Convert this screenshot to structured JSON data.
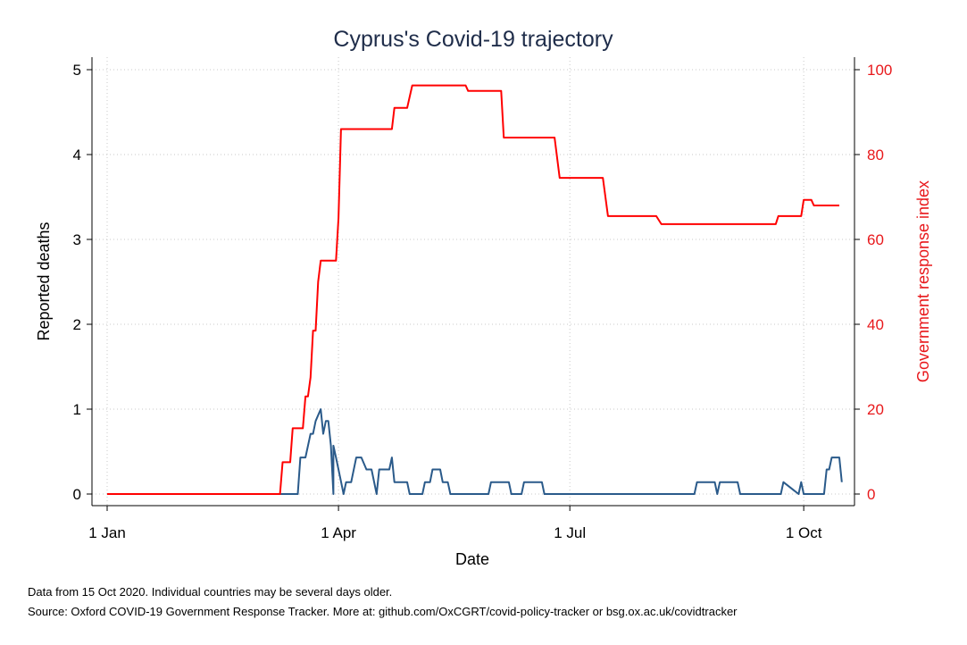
{
  "chart_data": {
    "type": "line",
    "title": "Cyprus's Covid-19 trajectory",
    "xlabel": "Date",
    "ylabel_left": "Reported deaths",
    "ylabel_right": "Government response index",
    "x_tick_labels": [
      "1 Jan",
      "1 Apr",
      "1 Jul",
      "1 Oct"
    ],
    "x_tick_dates": [
      "2020-01-01",
      "2020-04-01",
      "2020-07-01",
      "2020-10-01"
    ],
    "xlim": [
      "2020-01-01",
      "2020-10-15"
    ],
    "left_axis": {
      "ylim": [
        0,
        5
      ],
      "ticks": [
        "0",
        "1",
        "2",
        "3",
        "4",
        "5"
      ]
    },
    "right_axis": {
      "ylim": [
        0,
        100
      ],
      "ticks": [
        "0",
        "20",
        "40",
        "60",
        "80",
        "100"
      ]
    },
    "grid": true,
    "colors": {
      "deaths": "#2a5a8a",
      "response": "#ff0000",
      "right_axis_text": "#e8181b",
      "title": "#1f2d4a"
    },
    "series": [
      {
        "axis": "left",
        "color": "#2a5a8a",
        "points": [
          [
            "2020-01-01",
            0
          ],
          [
            "2020-03-30",
            0
          ],
          [
            "2020-03-09",
            0
          ],
          [
            "2020-03-16",
            0
          ],
          [
            "2020-03-17",
            0.43
          ],
          [
            "2020-03-19",
            0.43
          ],
          [
            "2020-03-21",
            0.71
          ],
          [
            "2020-03-22",
            0.71
          ],
          [
            "2020-03-23",
            0.86
          ],
          [
            "2020-03-25",
            1.0
          ],
          [
            "2020-03-26",
            0.71
          ],
          [
            "2020-03-27",
            0.86
          ],
          [
            "2020-03-28",
            0.86
          ],
          [
            "2020-03-29",
            0.57
          ],
          [
            "2020-03-30",
            0.57
          ],
          [
            "2020-03-31",
            0.43
          ],
          [
            "2020-04-01",
            0.29
          ],
          [
            "2020-04-03",
            0.0
          ],
          [
            "2020-04-04",
            0.14
          ],
          [
            "2020-04-06",
            0.14
          ],
          [
            "2020-04-08",
            0.43
          ],
          [
            "2020-04-10",
            0.43
          ],
          [
            "2020-04-12",
            0.29
          ],
          [
            "2020-04-14",
            0.29
          ],
          [
            "2020-04-16",
            0.0
          ],
          [
            "2020-04-17",
            0.29
          ],
          [
            "2020-04-21",
            0.29
          ],
          [
            "2020-04-22",
            0.43
          ],
          [
            "2020-04-23",
            0.14
          ],
          [
            "2020-04-28",
            0.14
          ],
          [
            "2020-04-29",
            0.0
          ],
          [
            "2020-05-04",
            0.0
          ],
          [
            "2020-05-05",
            0.14
          ],
          [
            "2020-05-07",
            0.14
          ],
          [
            "2020-05-08",
            0.29
          ],
          [
            "2020-05-11",
            0.29
          ],
          [
            "2020-05-12",
            0.14
          ],
          [
            "2020-05-14",
            0.14
          ],
          [
            "2020-05-15",
            0.0
          ],
          [
            "2020-05-30",
            0.0
          ],
          [
            "2020-05-31",
            0.14
          ],
          [
            "2020-06-07",
            0.14
          ],
          [
            "2020-06-08",
            0.0
          ],
          [
            "2020-06-12",
            0.0
          ],
          [
            "2020-06-13",
            0.14
          ],
          [
            "2020-06-20",
            0.14
          ],
          [
            "2020-06-21",
            0.0
          ],
          [
            "2020-08-19",
            0.0
          ],
          [
            "2020-08-20",
            0.14
          ],
          [
            "2020-08-27",
            0.14
          ],
          [
            "2020-08-28",
            0.0
          ],
          [
            "2020-08-29",
            0.14
          ],
          [
            "2020-09-05",
            0.14
          ],
          [
            "2020-09-06",
            0.0
          ],
          [
            "2020-09-22",
            0.0
          ],
          [
            "2020-09-23",
            0.14
          ],
          [
            "2020-09-30",
            0.14
          ],
          [
            "2020-10-01",
            0.0
          ],
          [
            "2020-09-29",
            0.0
          ],
          [
            "2020-10-09",
            0.0
          ],
          [
            "2020-10-10",
            0.29
          ],
          [
            "2020-10-11",
            0.29
          ],
          [
            "2020-10-12",
            0.43
          ],
          [
            "2020-10-15",
            0.43
          ],
          [
            "2020-10-16",
            0.14
          ]
        ]
      },
      {
        "axis": "right",
        "color": "#ff0000",
        "points": [
          [
            "2020-01-01",
            0
          ],
          [
            "2020-03-09",
            0
          ],
          [
            "2020-03-10",
            7.5
          ],
          [
            "2020-03-13",
            7.5
          ],
          [
            "2020-03-14",
            15.5
          ],
          [
            "2020-03-18",
            15.5
          ],
          [
            "2020-03-19",
            23.0
          ],
          [
            "2020-03-20",
            23.0
          ],
          [
            "2020-03-21",
            27.5
          ],
          [
            "2020-03-22",
            38.5
          ],
          [
            "2020-03-23",
            38.5
          ],
          [
            "2020-03-24",
            50.0
          ],
          [
            "2020-03-25",
            55.0
          ],
          [
            "2020-03-31",
            55.0
          ],
          [
            "2020-04-01",
            65.0
          ],
          [
            "2020-04-02",
            86.0
          ],
          [
            "2020-04-22",
            86.0
          ],
          [
            "2020-04-23",
            91.0
          ],
          [
            "2020-04-28",
            91.0
          ],
          [
            "2020-04-30",
            96.3
          ],
          [
            "2020-05-21",
            96.3
          ],
          [
            "2020-05-22",
            95.0
          ],
          [
            "2020-06-04",
            95.0
          ],
          [
            "2020-06-05",
            84.0
          ],
          [
            "2020-06-25",
            84.0
          ],
          [
            "2020-06-27",
            74.5
          ],
          [
            "2020-07-14",
            74.5
          ],
          [
            "2020-07-16",
            65.5
          ],
          [
            "2020-08-04",
            65.5
          ],
          [
            "2020-08-06",
            63.6
          ],
          [
            "2020-09-20",
            63.6
          ],
          [
            "2020-09-21",
            65.5
          ],
          [
            "2020-09-30",
            65.5
          ],
          [
            "2020-10-01",
            69.3
          ],
          [
            "2020-10-04",
            69.3
          ],
          [
            "2020-10-05",
            68.0
          ],
          [
            "2020-10-15",
            68.0
          ]
        ]
      }
    ]
  },
  "footnotes": {
    "line1": "Data from 15 Oct 2020. Individual countries may be several days older.",
    "line2": "Source: Oxford COVID-19 Government Response Tracker. More at: github.com/OxCGRT/covid-policy-tracker or bsg.ox.ac.uk/covidtracker"
  }
}
